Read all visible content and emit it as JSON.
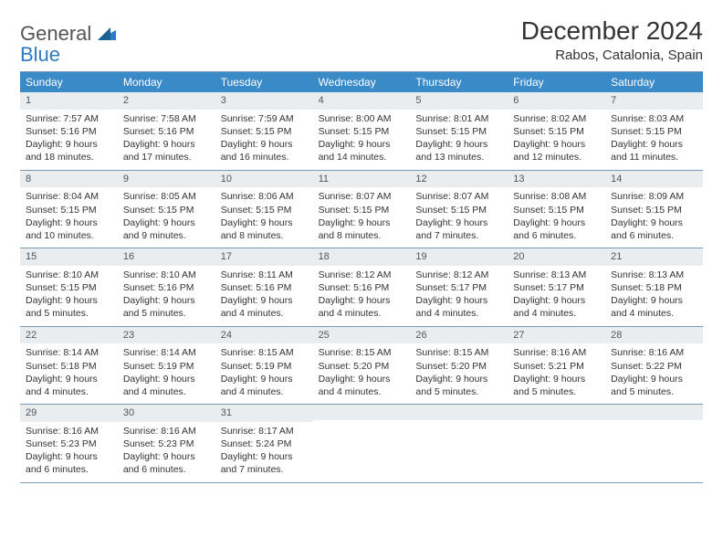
{
  "logo": {
    "word1": "General",
    "word2": "Blue"
  },
  "title": "December 2024",
  "location": "Rabos, Catalonia, Spain",
  "colors": {
    "header_bg": "#3a8ac0",
    "daynum_bg": "#e9edf0",
    "rule": "#7a99b8",
    "logo_blue": "#2f7ac0",
    "text": "#333333"
  },
  "weekdays": [
    "Sunday",
    "Monday",
    "Tuesday",
    "Wednesday",
    "Thursday",
    "Friday",
    "Saturday"
  ],
  "weeks": [
    [
      {
        "n": "1",
        "sr": "Sunrise: 7:57 AM",
        "ss": "Sunset: 5:16 PM",
        "d1": "Daylight: 9 hours",
        "d2": "and 18 minutes."
      },
      {
        "n": "2",
        "sr": "Sunrise: 7:58 AM",
        "ss": "Sunset: 5:16 PM",
        "d1": "Daylight: 9 hours",
        "d2": "and 17 minutes."
      },
      {
        "n": "3",
        "sr": "Sunrise: 7:59 AM",
        "ss": "Sunset: 5:15 PM",
        "d1": "Daylight: 9 hours",
        "d2": "and 16 minutes."
      },
      {
        "n": "4",
        "sr": "Sunrise: 8:00 AM",
        "ss": "Sunset: 5:15 PM",
        "d1": "Daylight: 9 hours",
        "d2": "and 14 minutes."
      },
      {
        "n": "5",
        "sr": "Sunrise: 8:01 AM",
        "ss": "Sunset: 5:15 PM",
        "d1": "Daylight: 9 hours",
        "d2": "and 13 minutes."
      },
      {
        "n": "6",
        "sr": "Sunrise: 8:02 AM",
        "ss": "Sunset: 5:15 PM",
        "d1": "Daylight: 9 hours",
        "d2": "and 12 minutes."
      },
      {
        "n": "7",
        "sr": "Sunrise: 8:03 AM",
        "ss": "Sunset: 5:15 PM",
        "d1": "Daylight: 9 hours",
        "d2": "and 11 minutes."
      }
    ],
    [
      {
        "n": "8",
        "sr": "Sunrise: 8:04 AM",
        "ss": "Sunset: 5:15 PM",
        "d1": "Daylight: 9 hours",
        "d2": "and 10 minutes."
      },
      {
        "n": "9",
        "sr": "Sunrise: 8:05 AM",
        "ss": "Sunset: 5:15 PM",
        "d1": "Daylight: 9 hours",
        "d2": "and 9 minutes."
      },
      {
        "n": "10",
        "sr": "Sunrise: 8:06 AM",
        "ss": "Sunset: 5:15 PM",
        "d1": "Daylight: 9 hours",
        "d2": "and 8 minutes."
      },
      {
        "n": "11",
        "sr": "Sunrise: 8:07 AM",
        "ss": "Sunset: 5:15 PM",
        "d1": "Daylight: 9 hours",
        "d2": "and 8 minutes."
      },
      {
        "n": "12",
        "sr": "Sunrise: 8:07 AM",
        "ss": "Sunset: 5:15 PM",
        "d1": "Daylight: 9 hours",
        "d2": "and 7 minutes."
      },
      {
        "n": "13",
        "sr": "Sunrise: 8:08 AM",
        "ss": "Sunset: 5:15 PM",
        "d1": "Daylight: 9 hours",
        "d2": "and 6 minutes."
      },
      {
        "n": "14",
        "sr": "Sunrise: 8:09 AM",
        "ss": "Sunset: 5:15 PM",
        "d1": "Daylight: 9 hours",
        "d2": "and 6 minutes."
      }
    ],
    [
      {
        "n": "15",
        "sr": "Sunrise: 8:10 AM",
        "ss": "Sunset: 5:15 PM",
        "d1": "Daylight: 9 hours",
        "d2": "and 5 minutes."
      },
      {
        "n": "16",
        "sr": "Sunrise: 8:10 AM",
        "ss": "Sunset: 5:16 PM",
        "d1": "Daylight: 9 hours",
        "d2": "and 5 minutes."
      },
      {
        "n": "17",
        "sr": "Sunrise: 8:11 AM",
        "ss": "Sunset: 5:16 PM",
        "d1": "Daylight: 9 hours",
        "d2": "and 4 minutes."
      },
      {
        "n": "18",
        "sr": "Sunrise: 8:12 AM",
        "ss": "Sunset: 5:16 PM",
        "d1": "Daylight: 9 hours",
        "d2": "and 4 minutes."
      },
      {
        "n": "19",
        "sr": "Sunrise: 8:12 AM",
        "ss": "Sunset: 5:17 PM",
        "d1": "Daylight: 9 hours",
        "d2": "and 4 minutes."
      },
      {
        "n": "20",
        "sr": "Sunrise: 8:13 AM",
        "ss": "Sunset: 5:17 PM",
        "d1": "Daylight: 9 hours",
        "d2": "and 4 minutes."
      },
      {
        "n": "21",
        "sr": "Sunrise: 8:13 AM",
        "ss": "Sunset: 5:18 PM",
        "d1": "Daylight: 9 hours",
        "d2": "and 4 minutes."
      }
    ],
    [
      {
        "n": "22",
        "sr": "Sunrise: 8:14 AM",
        "ss": "Sunset: 5:18 PM",
        "d1": "Daylight: 9 hours",
        "d2": "and 4 minutes."
      },
      {
        "n": "23",
        "sr": "Sunrise: 8:14 AM",
        "ss": "Sunset: 5:19 PM",
        "d1": "Daylight: 9 hours",
        "d2": "and 4 minutes."
      },
      {
        "n": "24",
        "sr": "Sunrise: 8:15 AM",
        "ss": "Sunset: 5:19 PM",
        "d1": "Daylight: 9 hours",
        "d2": "and 4 minutes."
      },
      {
        "n": "25",
        "sr": "Sunrise: 8:15 AM",
        "ss": "Sunset: 5:20 PM",
        "d1": "Daylight: 9 hours",
        "d2": "and 4 minutes."
      },
      {
        "n": "26",
        "sr": "Sunrise: 8:15 AM",
        "ss": "Sunset: 5:20 PM",
        "d1": "Daylight: 9 hours",
        "d2": "and 5 minutes."
      },
      {
        "n": "27",
        "sr": "Sunrise: 8:16 AM",
        "ss": "Sunset: 5:21 PM",
        "d1": "Daylight: 9 hours",
        "d2": "and 5 minutes."
      },
      {
        "n": "28",
        "sr": "Sunrise: 8:16 AM",
        "ss": "Sunset: 5:22 PM",
        "d1": "Daylight: 9 hours",
        "d2": "and 5 minutes."
      }
    ],
    [
      {
        "n": "29",
        "sr": "Sunrise: 8:16 AM",
        "ss": "Sunset: 5:23 PM",
        "d1": "Daylight: 9 hours",
        "d2": "and 6 minutes."
      },
      {
        "n": "30",
        "sr": "Sunrise: 8:16 AM",
        "ss": "Sunset: 5:23 PM",
        "d1": "Daylight: 9 hours",
        "d2": "and 6 minutes."
      },
      {
        "n": "31",
        "sr": "Sunrise: 8:17 AM",
        "ss": "Sunset: 5:24 PM",
        "d1": "Daylight: 9 hours",
        "d2": "and 7 minutes."
      },
      {
        "empty": true
      },
      {
        "empty": true
      },
      {
        "empty": true
      },
      {
        "empty": true
      }
    ]
  ]
}
